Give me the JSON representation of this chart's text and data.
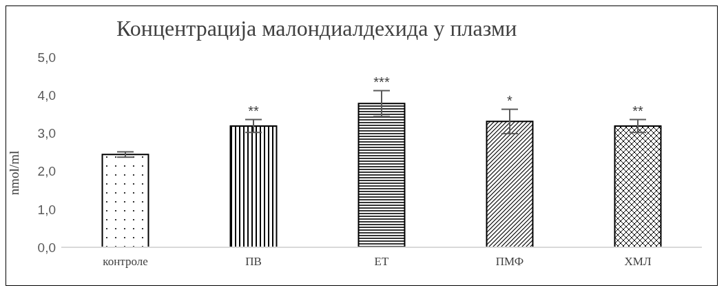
{
  "chart_data": {
    "type": "bar",
    "title": "Концентрација малондиалдехида у плазми",
    "ylabel": "nmol/ml",
    "categories": [
      "контроле",
      "ПВ",
      "ЕТ",
      "ПМФ",
      "ХМЛ"
    ],
    "values": [
      2.44,
      3.19,
      3.78,
      3.31,
      3.19
    ],
    "errors": [
      0.07,
      0.17,
      0.34,
      0.32,
      0.17
    ],
    "colors": [
      "#000000",
      "#000000",
      "#000000",
      "#000000",
      "#000000"
    ],
    "ylim": [
      0,
      5
    ],
    "yticks": [
      {
        "value": 0,
        "label": "0,0"
      },
      {
        "value": 1,
        "label": "1,0"
      },
      {
        "value": 2,
        "label": "2,0"
      },
      {
        "value": 3,
        "label": "3,0"
      },
      {
        "value": 4,
        "label": "4,0"
      },
      {
        "value": 5,
        "label": "5,0"
      }
    ],
    "grid": false,
    "legend": false,
    "annotations": [
      "**",
      "***",
      "*",
      "**"
    ]
  }
}
